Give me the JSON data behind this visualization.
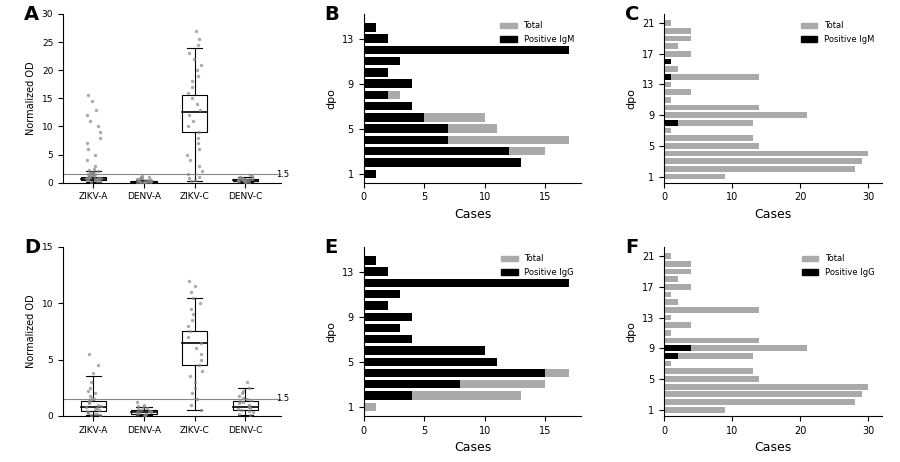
{
  "panel_A": {
    "label": "A",
    "ylabel": "Normalized OD",
    "ylim": [
      0,
      30
    ],
    "yticks": [
      0,
      5,
      10,
      15,
      20,
      25,
      30
    ],
    "threshold": 1.5,
    "groups": [
      "ZIKV-A",
      "DENV-A",
      "ZIKV-C",
      "DENV-C"
    ],
    "box_stats": {
      "ZIKV-A": {
        "median": 0.6,
        "q1": 0.4,
        "q3": 1.0,
        "whislo": 0.1,
        "whishi": 2.0,
        "fliers": [
          0.2,
          0.3,
          0.35,
          0.45,
          0.5,
          0.55,
          0.6,
          0.65,
          0.7,
          0.75,
          0.8,
          0.85,
          0.9,
          0.95,
          1.0,
          1.05,
          1.1,
          1.2,
          1.3,
          1.4,
          1.5,
          1.6,
          1.7,
          1.8,
          1.9,
          2.1,
          2.2,
          2.5,
          3.0,
          4.0,
          5.0,
          6.0,
          7.0,
          8.0,
          9.0,
          10.0,
          11.0,
          12.0,
          13.0,
          14.5,
          15.5
        ]
      },
      "DENV-A": {
        "median": 0.2,
        "q1": 0.15,
        "q3": 0.3,
        "whislo": 0.05,
        "whishi": 0.5,
        "fliers": [
          0.05,
          0.08,
          0.1,
          0.12,
          0.15,
          0.18,
          0.2,
          0.22,
          0.25,
          0.28,
          0.3,
          0.35,
          0.4,
          0.45,
          0.5,
          0.55,
          0.6,
          0.7,
          0.8,
          0.9,
          1.0,
          1.1,
          1.2
        ]
      },
      "ZIKV-C": {
        "median": 12.5,
        "q1": 9.0,
        "q3": 15.5,
        "whislo": 0.3,
        "whishi": 24.0,
        "fliers": [
          0.3,
          0.5,
          0.8,
          1.0,
          1.5,
          2.0,
          3.0,
          4.0,
          5.0,
          6.0,
          7.0,
          8.0,
          9.0,
          10.0,
          11.0,
          12.0,
          13.0,
          14.0,
          15.0,
          16.0,
          17.0,
          18.0,
          19.0,
          20.0,
          21.0,
          22.0,
          23.0,
          24.5,
          25.5,
          27.0
        ]
      },
      "DENV-C": {
        "median": 0.4,
        "q1": 0.3,
        "q3": 0.6,
        "whislo": 0.1,
        "whishi": 1.0,
        "fliers": [
          0.1,
          0.15,
          0.2,
          0.25,
          0.3,
          0.35,
          0.4,
          0.45,
          0.5,
          0.55,
          0.6,
          0.65,
          0.7,
          0.75,
          0.8,
          0.85,
          0.9,
          1.1,
          1.2,
          1.4
        ]
      }
    }
  },
  "panel_D": {
    "label": "D",
    "ylabel": "Normalized OD",
    "ylim": [
      0,
      15
    ],
    "yticks": [
      0,
      5,
      10,
      15
    ],
    "threshold": 1.5,
    "groups": [
      "ZIKV-A",
      "DENV-A",
      "ZIKV-C",
      "DENV-C"
    ],
    "box_stats": {
      "ZIKV-A": {
        "median": 0.8,
        "q1": 0.4,
        "q3": 1.3,
        "whislo": 0.05,
        "whishi": 3.5,
        "fliers": [
          0.05,
          0.1,
          0.15,
          0.2,
          0.25,
          0.3,
          0.4,
          0.5,
          0.6,
          0.7,
          0.8,
          0.9,
          1.0,
          1.1,
          1.2,
          1.3,
          1.4,
          1.5,
          1.6,
          1.8,
          2.0,
          2.2,
          2.5,
          3.0,
          3.8,
          4.5,
          5.5
        ]
      },
      "DENV-A": {
        "median": 0.3,
        "q1": 0.2,
        "q3": 0.5,
        "whislo": 0.05,
        "whishi": 0.8,
        "fliers": [
          0.05,
          0.1,
          0.15,
          0.2,
          0.25,
          0.3,
          0.35,
          0.4,
          0.45,
          0.5,
          0.6,
          0.7,
          0.8,
          0.9,
          1.0,
          1.2
        ]
      },
      "ZIKV-C": {
        "median": 6.5,
        "q1": 4.5,
        "q3": 7.5,
        "whislo": 0.5,
        "whishi": 10.5,
        "fliers": [
          0.5,
          1.0,
          1.5,
          2.0,
          2.5,
          3.0,
          3.5,
          4.0,
          4.5,
          5.0,
          5.5,
          6.0,
          6.5,
          7.0,
          7.5,
          8.0,
          8.5,
          9.0,
          9.5,
          10.0,
          10.5,
          11.0,
          11.5,
          12.0
        ]
      },
      "DENV-C": {
        "median": 0.8,
        "q1": 0.5,
        "q3": 1.3,
        "whislo": 0.1,
        "whishi": 2.5,
        "fliers": [
          0.1,
          0.2,
          0.3,
          0.4,
          0.5,
          0.6,
          0.7,
          0.8,
          0.9,
          1.0,
          1.1,
          1.2,
          1.3,
          1.4,
          1.5,
          1.6,
          1.8,
          2.0,
          2.2,
          2.5,
          3.0
        ]
      }
    }
  },
  "panel_B": {
    "label": "B",
    "title": "",
    "xlabel": "Cases",
    "ylabel": "dpo",
    "xlim": [
      0,
      18
    ],
    "xticks": [
      0,
      5,
      10,
      15
    ],
    "legend_pos": "upper right",
    "legend_labels": [
      "Total",
      "Positive IgM"
    ],
    "dpo": [
      1,
      2,
      3,
      4,
      5,
      6,
      7,
      8,
      9,
      10,
      11,
      12,
      13,
      14
    ],
    "total": [
      1,
      13,
      15,
      17,
      11,
      10,
      4,
      3,
      4,
      2,
      3,
      17,
      2,
      1
    ],
    "positive": [
      1,
      13,
      12,
      7,
      7,
      5,
      4,
      2,
      4,
      2,
      3,
      17,
      2,
      1
    ]
  },
  "panel_C": {
    "label": "C",
    "title": "",
    "xlabel": "Cases",
    "ylabel": "dpo",
    "xlim": [
      0,
      32
    ],
    "xticks": [
      0,
      10,
      20,
      30
    ],
    "legend_pos": "upper right",
    "legend_labels": [
      "Total",
      "Positive IgM"
    ],
    "dpo": [
      1,
      2,
      3,
      4,
      5,
      6,
      7,
      8,
      9,
      10,
      11,
      12,
      13,
      14,
      15,
      16,
      17,
      18,
      19,
      20,
      21
    ],
    "total": [
      9,
      28,
      29,
      30,
      14,
      13,
      1,
      13,
      21,
      14,
      1,
      4,
      1,
      14,
      2,
      1,
      4,
      2,
      4,
      4,
      1
    ],
    "positive": [
      0,
      0,
      0,
      0,
      0,
      0,
      0,
      2,
      0,
      0,
      0,
      0,
      0,
      1,
      0,
      1,
      0,
      0,
      0,
      0,
      0
    ]
  },
  "panel_E": {
    "label": "E",
    "title": "",
    "xlabel": "Cases",
    "ylabel": "dpo",
    "xlim": [
      0,
      18
    ],
    "xticks": [
      0,
      5,
      10,
      15
    ],
    "legend_pos": "upper right",
    "legend_labels": [
      "Total",
      "Positive IgG"
    ],
    "dpo": [
      1,
      2,
      3,
      4,
      5,
      6,
      7,
      8,
      9,
      10,
      11,
      12,
      13,
      14
    ],
    "total": [
      1,
      13,
      15,
      17,
      11,
      10,
      4,
      3,
      4,
      2,
      3,
      17,
      2,
      1
    ],
    "positive": [
      0,
      4,
      8,
      15,
      11,
      10,
      4,
      3,
      4,
      2,
      3,
      17,
      2,
      1
    ]
  },
  "panel_F": {
    "label": "F",
    "title": "",
    "xlabel": "Cases",
    "ylabel": "dpo",
    "xlim": [
      0,
      32
    ],
    "xticks": [
      0,
      10,
      20,
      30
    ],
    "legend_pos": "upper right",
    "legend_labels": [
      "Total",
      "Positive IgG"
    ],
    "dpo": [
      1,
      2,
      3,
      4,
      5,
      6,
      7,
      8,
      9,
      10,
      11,
      12,
      13,
      14,
      15,
      16,
      17,
      18,
      19,
      20,
      21
    ],
    "total": [
      9,
      28,
      29,
      30,
      14,
      13,
      1,
      13,
      21,
      14,
      1,
      4,
      1,
      14,
      2,
      1,
      4,
      2,
      4,
      4,
      1
    ],
    "positive": [
      0,
      0,
      0,
      0,
      0,
      0,
      0,
      2,
      4,
      0,
      0,
      0,
      0,
      0,
      0,
      0,
      0,
      0,
      0,
      0,
      0
    ]
  },
  "color_total": "#aaaaaa",
  "color_positive": "#000000",
  "color_box": "#bbbbbb",
  "color_median": "#000000",
  "color_whisker": "#000000",
  "color_flier": "#888888",
  "color_threshold": "#888888"
}
